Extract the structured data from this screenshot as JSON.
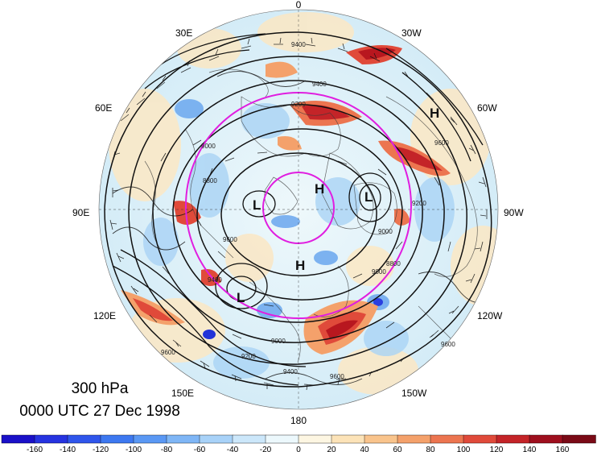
{
  "map": {
    "level": "300 hPa",
    "datetime": "0000 UTC 27 Dec 1998",
    "longitude_labels": [
      {
        "name": "lon-0",
        "text": "0"
      },
      {
        "name": "lon-30w",
        "text": "30W"
      },
      {
        "name": "lon-60w",
        "text": "60W"
      },
      {
        "name": "lon-90w",
        "text": "90W"
      },
      {
        "name": "lon-120w",
        "text": "120W"
      },
      {
        "name": "lon-150w",
        "text": "150W"
      },
      {
        "name": "lon-180",
        "text": "180"
      },
      {
        "name": "lon-150e",
        "text": "150E"
      },
      {
        "name": "lon-120e",
        "text": "120E"
      },
      {
        "name": "lon-90e",
        "text": "90E"
      },
      {
        "name": "lon-60e",
        "text": "60E"
      },
      {
        "name": "lon-30e",
        "text": "30E"
      }
    ],
    "pressure_centers": [
      {
        "name": "high-center-atlantic",
        "text": "H"
      },
      {
        "name": "high-center-pole",
        "text": "H"
      },
      {
        "name": "low-center-canada",
        "text": "L"
      },
      {
        "name": "high-center-arctic",
        "text": "H"
      },
      {
        "name": "low-center-siberia",
        "text": "L"
      },
      {
        "name": "low-center-east-asia",
        "text": "L"
      }
    ],
    "contour_labels": [
      "9400",
      "9200",
      "9000",
      "9600",
      "9400",
      "8800",
      "9000",
      "9600",
      "9400",
      "9200",
      "9000",
      "9600",
      "8800",
      "9000",
      "9600",
      "9200",
      "9400",
      "9600"
    ],
    "colorbar": {
      "ticks": [
        "-160",
        "-140",
        "-120",
        "-100",
        "-80",
        "-60",
        "-40",
        "-20",
        "0",
        "20",
        "40",
        "60",
        "80",
        "100",
        "120",
        "140",
        "160"
      ],
      "colors": [
        "#1a10c8",
        "#2633e0",
        "#2f55eb",
        "#3d78f0",
        "#5a98f4",
        "#7fb6f6",
        "#a8d2f8",
        "#cce7fa",
        "#ecf8fc",
        "#fdf6e2",
        "#fce3b8",
        "#f9c48c",
        "#f4a16b",
        "#ec7550",
        "#e04a3a",
        "#c42428",
        "#9e0f1e"
      ]
    },
    "colors": {
      "jet_circle": "#e01ee0",
      "contour": "#111111",
      "coastline": "#333333"
    }
  }
}
